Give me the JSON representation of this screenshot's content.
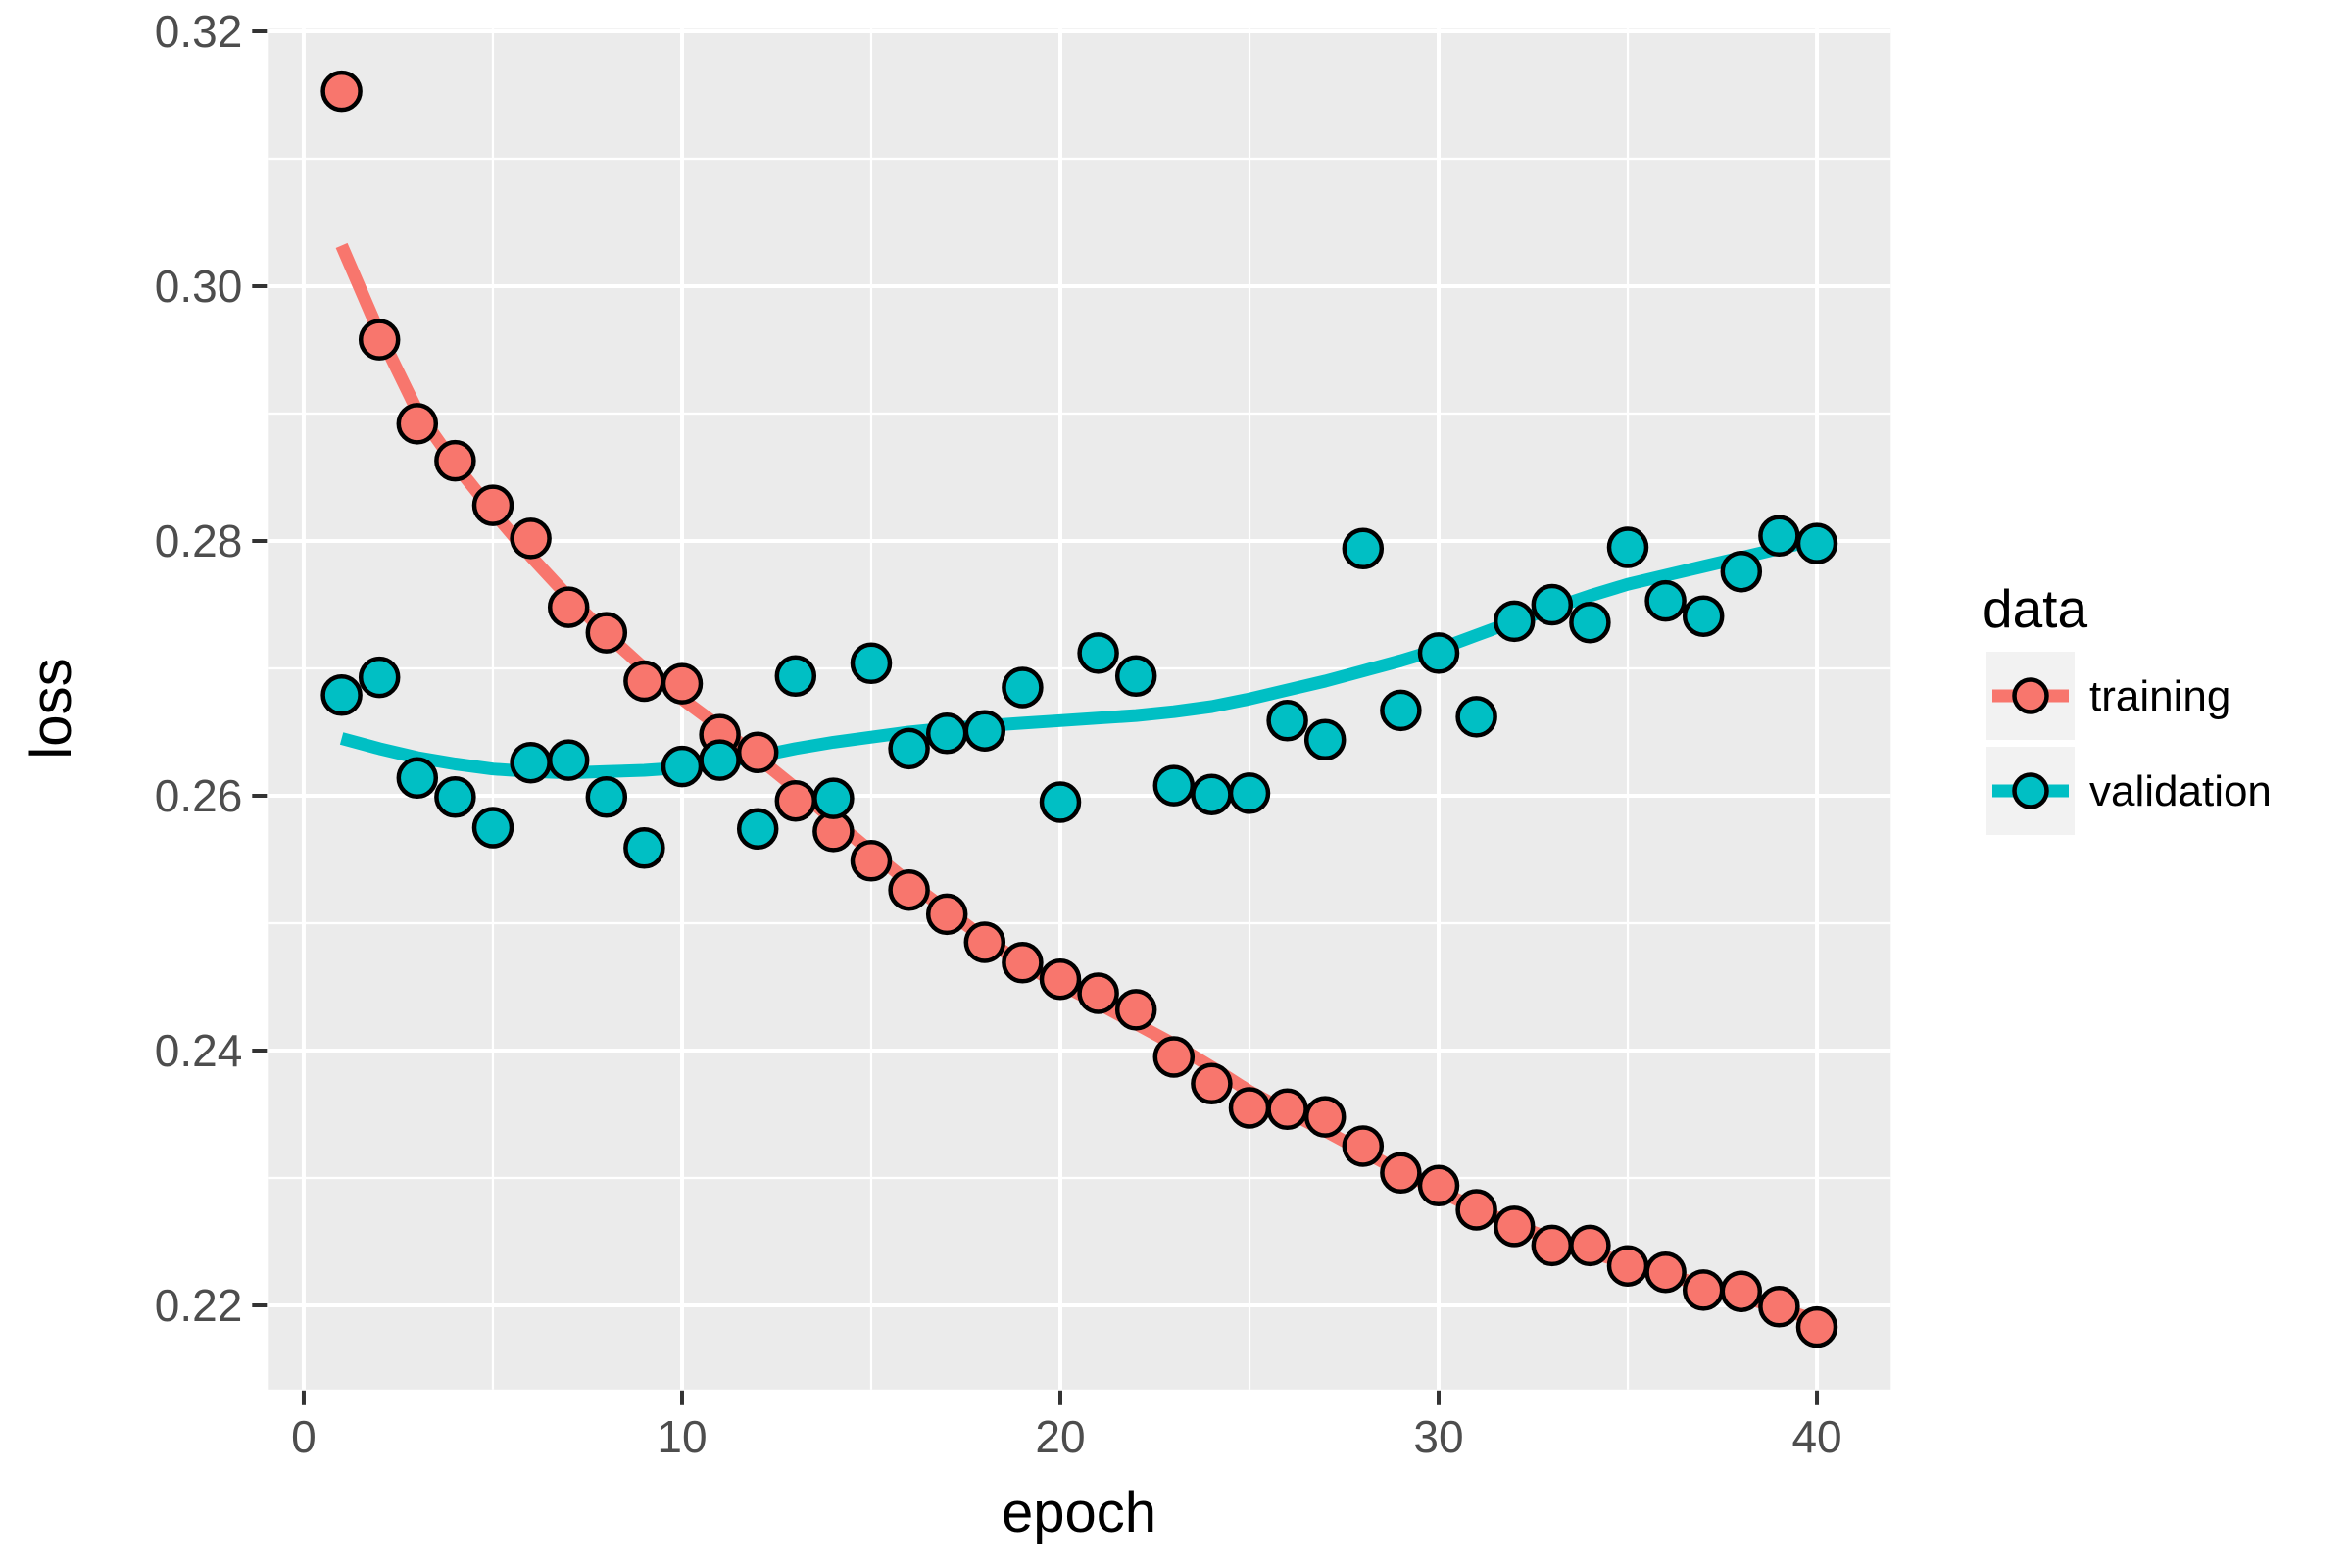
{
  "chart_data": {
    "type": "scatter",
    "title": "",
    "xlabel": "epoch",
    "ylabel": "loss",
    "x_ticks": [
      0,
      10,
      20,
      30,
      40
    ],
    "y_ticks": [
      0.22,
      0.24,
      0.26,
      0.28,
      0.3,
      0.32
    ],
    "x_minor": [
      5,
      15,
      25,
      35
    ],
    "y_minor": [
      0.23,
      0.25,
      0.27,
      0.29,
      0.31
    ],
    "xlim": [
      -0.95,
      41.95
    ],
    "ylim": [
      0.2134,
      0.3202
    ],
    "grid": true,
    "legend": {
      "title": "data",
      "position": "right",
      "entries": [
        {
          "label": "training",
          "color": "#F8766D"
        },
        {
          "label": "validation",
          "color": "#00BFC4"
        }
      ]
    },
    "x": [
      1,
      2,
      3,
      4,
      5,
      6,
      7,
      8,
      9,
      10,
      11,
      12,
      13,
      14,
      15,
      16,
      17,
      18,
      19,
      20,
      21,
      22,
      23,
      24,
      25,
      26,
      27,
      28,
      29,
      30,
      31,
      32,
      33,
      34,
      35,
      36,
      37,
      38,
      39,
      40
    ],
    "series": [
      {
        "name": "training",
        "color": "#F8766D",
        "points": [
          0.3153,
          0.2958,
          0.2892,
          0.2863,
          0.2828,
          0.2802,
          0.2748,
          0.2728,
          0.269,
          0.2688,
          0.2648,
          0.2634,
          0.2596,
          0.2572,
          0.2549,
          0.2526,
          0.2507,
          0.2485,
          0.2469,
          0.2456,
          0.2445,
          0.2432,
          0.2395,
          0.2374,
          0.2355,
          0.2354,
          0.2348,
          0.2325,
          0.2304,
          0.2294,
          0.2275,
          0.2262,
          0.2247,
          0.2247,
          0.2231,
          0.2226,
          0.2212,
          0.2211,
          0.2199,
          0.2183
        ],
        "smooth": [
          0.3032,
          0.2963,
          0.2902,
          0.286,
          0.2823,
          0.2788,
          0.2756,
          0.2727,
          0.27,
          0.2676,
          0.2654,
          0.263,
          0.2606,
          0.2581,
          0.2556,
          0.2532,
          0.251,
          0.2488,
          0.2468,
          0.2452,
          0.2437,
          0.2421,
          0.2405,
          0.2387,
          0.2368,
          0.2352,
          0.2337,
          0.2321,
          0.2305,
          0.229,
          0.2276,
          0.2263,
          0.2252,
          0.2242,
          0.2233,
          0.2224,
          0.2216,
          0.2207,
          0.2198,
          0.2188
        ]
      },
      {
        "name": "validation",
        "color": "#00BFC4",
        "points": [
          0.2679,
          0.2693,
          0.2614,
          0.2599,
          0.2575,
          0.2626,
          0.2628,
          0.2599,
          0.2559,
          0.2623,
          0.2628,
          0.2574,
          0.2694,
          0.2598,
          0.2704,
          0.2637,
          0.2649,
          0.2651,
          0.2685,
          0.2595,
          0.2712,
          0.2694,
          0.2608,
          0.2601,
          0.2602,
          0.2659,
          0.2644,
          0.2794,
          0.2667,
          0.2712,
          0.2662,
          0.2737,
          0.275,
          0.2736,
          0.2795,
          0.2753,
          0.2741,
          0.2776,
          0.2804,
          0.2798
        ],
        "smooth": [
          0.2645,
          0.2637,
          0.263,
          0.2625,
          0.2621,
          0.2619,
          0.2618,
          0.2619,
          0.262,
          0.2622,
          0.2626,
          0.2631,
          0.2637,
          0.2642,
          0.2646,
          0.265,
          0.2653,
          0.2655,
          0.2657,
          0.2659,
          0.2661,
          0.2663,
          0.2666,
          0.267,
          0.2676,
          0.2683,
          0.269,
          0.2698,
          0.2706,
          0.2715,
          0.2726,
          0.2737,
          0.2747,
          0.2757,
          0.2766,
          0.2773,
          0.278,
          0.2787,
          0.2794,
          0.2801
        ]
      }
    ],
    "styles": {
      "panel_bg": "#EBEBEB",
      "grid_color": "#FFFFFF",
      "tick_color": "#333333",
      "tick_label_color": "#4D4D4D",
      "point_stroke": "#000000",
      "legend_key_bg": "#F2F2F2",
      "text_color": "#000000"
    }
  }
}
